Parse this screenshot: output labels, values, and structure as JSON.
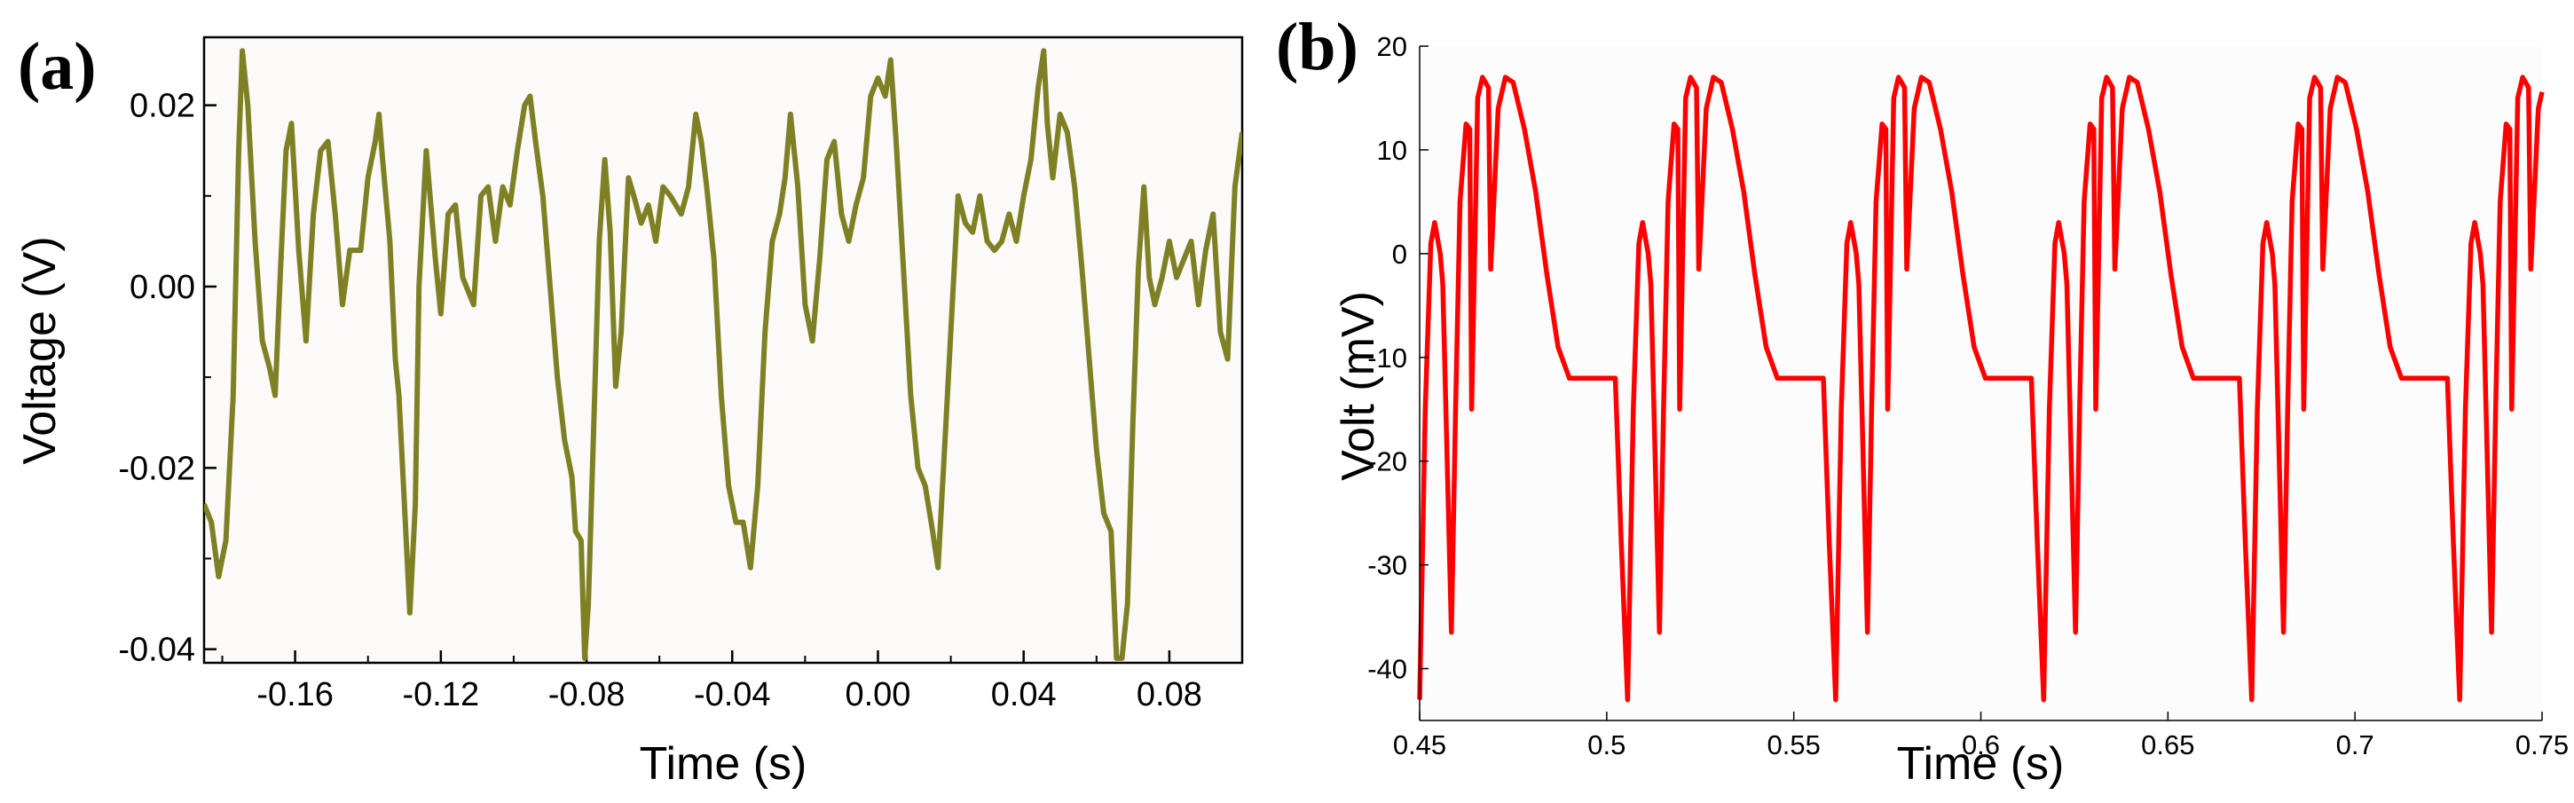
{
  "chart_data": [
    {
      "panel_label": "(a)",
      "type": "line",
      "xlabel": "Time (s)",
      "ylabel": "Voltage (V)",
      "xlim": [
        -0.185,
        0.1
      ],
      "ylim": [
        -0.0415,
        0.0275
      ],
      "x_ticks": [
        -0.16,
        -0.12,
        -0.08,
        -0.04,
        0.0,
        0.04,
        0.08
      ],
      "x_tick_labels": [
        "-0.16",
        "-0.12",
        "-0.08",
        "-0.04",
        "0.00",
        "0.04",
        "0.08"
      ],
      "y_ticks": [
        -0.04,
        -0.02,
        0.0,
        0.02
      ],
      "y_tick_labels": [
        "-0.04",
        "-0.02",
        "0.00",
        "0.02"
      ],
      "grid": false,
      "series": [
        {
          "name": "voltage",
          "color": "#7f7f24",
          "points": [
            [
              -0.185,
              -0.024
            ],
            [
              -0.183,
              -0.026
            ],
            [
              -0.181,
              -0.032
            ],
            [
              -0.179,
              -0.028
            ],
            [
              -0.177,
              -0.012
            ],
            [
              -0.1755,
              0.015
            ],
            [
              -0.1745,
              0.026
            ],
            [
              -0.173,
              0.02
            ],
            [
              -0.171,
              0.005
            ],
            [
              -0.169,
              -0.006
            ],
            [
              -0.167,
              -0.009
            ],
            [
              -0.1655,
              -0.012
            ],
            [
              -0.164,
              0.002
            ],
            [
              -0.1625,
              0.015
            ],
            [
              -0.161,
              0.018
            ],
            [
              -0.159,
              0.004
            ],
            [
              -0.157,
              -0.006
            ],
            [
              -0.155,
              0.008
            ],
            [
              -0.153,
              0.015
            ],
            [
              -0.151,
              0.016
            ],
            [
              -0.149,
              0.008
            ],
            [
              -0.147,
              -0.002
            ],
            [
              -0.145,
              0.004
            ],
            [
              -0.142,
              0.004
            ],
            [
              -0.14,
              0.012
            ],
            [
              -0.138,
              0.016
            ],
            [
              -0.137,
              0.019
            ],
            [
              -0.136,
              0.014
            ],
            [
              -0.134,
              0.005
            ],
            [
              -0.1325,
              -0.008
            ],
            [
              -0.1315,
              -0.012
            ],
            [
              -0.13,
              -0.024
            ],
            [
              -0.1285,
              -0.036
            ],
            [
              -0.127,
              -0.024
            ],
            [
              -0.126,
              0.0
            ],
            [
              -0.124,
              0.015
            ],
            [
              -0.1215,
              0.003
            ],
            [
              -0.12,
              -0.003
            ],
            [
              -0.118,
              0.008
            ],
            [
              -0.116,
              0.009
            ],
            [
              -0.114,
              0.001
            ],
            [
              -0.111,
              -0.002
            ],
            [
              -0.109,
              0.01
            ],
            [
              -0.107,
              0.011
            ],
            [
              -0.105,
              0.005
            ],
            [
              -0.103,
              0.011
            ],
            [
              -0.101,
              0.009
            ],
            [
              -0.099,
              0.015
            ],
            [
              -0.097,
              0.02
            ],
            [
              -0.0955,
              0.021
            ],
            [
              -0.094,
              0.016
            ],
            [
              -0.092,
              0.01
            ],
            [
              -0.09,
              0.0
            ],
            [
              -0.088,
              -0.01
            ],
            [
              -0.086,
              -0.017
            ],
            [
              -0.084,
              -0.021
            ],
            [
              -0.083,
              -0.027
            ],
            [
              -0.0815,
              -0.028
            ],
            [
              -0.0805,
              -0.041
            ],
            [
              -0.0795,
              -0.035
            ],
            [
              -0.078,
              -0.015
            ],
            [
              -0.0765,
              0.005
            ],
            [
              -0.075,
              0.014
            ],
            [
              -0.0735,
              0.006
            ],
            [
              -0.072,
              -0.011
            ],
            [
              -0.0705,
              -0.005
            ],
            [
              -0.0685,
              0.012
            ],
            [
              -0.067,
              0.01
            ],
            [
              -0.065,
              0.007
            ],
            [
              -0.063,
              0.009
            ],
            [
              -0.061,
              0.005
            ],
            [
              -0.059,
              0.011
            ],
            [
              -0.057,
              0.01
            ],
            [
              -0.054,
              0.008
            ],
            [
              -0.052,
              0.011
            ],
            [
              -0.05,
              0.019
            ],
            [
              -0.0485,
              0.016
            ],
            [
              -0.047,
              0.011
            ],
            [
              -0.045,
              0.003
            ],
            [
              -0.043,
              -0.012
            ],
            [
              -0.041,
              -0.022
            ],
            [
              -0.039,
              -0.026
            ],
            [
              -0.037,
              -0.026
            ],
            [
              -0.035,
              -0.031
            ],
            [
              -0.033,
              -0.022
            ],
            [
              -0.031,
              -0.005
            ],
            [
              -0.029,
              0.005
            ],
            [
              -0.027,
              0.008
            ],
            [
              -0.0255,
              0.012
            ],
            [
              -0.024,
              0.019
            ],
            [
              -0.022,
              0.011
            ],
            [
              -0.02,
              -0.002
            ],
            [
              -0.018,
              -0.006
            ],
            [
              -0.016,
              0.003
            ],
            [
              -0.014,
              0.014
            ],
            [
              -0.012,
              0.016
            ],
            [
              -0.01,
              0.008
            ],
            [
              -0.008,
              0.005
            ],
            [
              -0.006,
              0.009
            ],
            [
              -0.004,
              0.012
            ],
            [
              -0.002,
              0.021
            ],
            [
              0.0,
              0.023
            ],
            [
              0.002,
              0.021
            ],
            [
              0.0035,
              0.025
            ],
            [
              0.005,
              0.016
            ],
            [
              0.007,
              0.002
            ],
            [
              0.009,
              -0.012
            ],
            [
              0.011,
              -0.02
            ],
            [
              0.013,
              -0.022
            ],
            [
              0.015,
              -0.027
            ],
            [
              0.0165,
              -0.031
            ],
            [
              0.018,
              -0.02
            ],
            [
              0.02,
              -0.005
            ],
            [
              0.022,
              0.01
            ],
            [
              0.024,
              0.007
            ],
            [
              0.026,
              0.006
            ],
            [
              0.028,
              0.01
            ],
            [
              0.03,
              0.005
            ],
            [
              0.032,
              0.004
            ],
            [
              0.034,
              0.005
            ],
            [
              0.036,
              0.008
            ],
            [
              0.038,
              0.005
            ],
            [
              0.04,
              0.01
            ],
            [
              0.042,
              0.014
            ],
            [
              0.044,
              0.022
            ],
            [
              0.0455,
              0.026
            ],
            [
              0.0465,
              0.018
            ],
            [
              0.048,
              0.012
            ],
            [
              0.05,
              0.019
            ],
            [
              0.052,
              0.017
            ],
            [
              0.054,
              0.011
            ],
            [
              0.056,
              0.002
            ],
            [
              0.058,
              -0.008
            ],
            [
              0.06,
              -0.018
            ],
            [
              0.062,
              -0.025
            ],
            [
              0.064,
              -0.027
            ],
            [
              0.0655,
              -0.041
            ],
            [
              0.067,
              -0.041
            ],
            [
              0.0685,
              -0.035
            ],
            [
              0.07,
              -0.015
            ],
            [
              0.0715,
              0.002
            ],
            [
              0.073,
              0.011
            ],
            [
              0.0745,
              0.001
            ],
            [
              0.076,
              -0.002
            ],
            [
              0.078,
              0.001
            ],
            [
              0.08,
              0.005
            ],
            [
              0.082,
              0.001
            ],
            [
              0.084,
              0.003
            ],
            [
              0.086,
              0.005
            ],
            [
              0.088,
              -0.002
            ],
            [
              0.09,
              0.004
            ],
            [
              0.092,
              0.008
            ],
            [
              0.094,
              -0.005
            ],
            [
              0.096,
              -0.008
            ],
            [
              0.098,
              0.011
            ],
            [
              0.1,
              0.017
            ]
          ]
        }
      ]
    },
    {
      "panel_label": "(b)",
      "type": "line",
      "xlabel": "Time (s)",
      "ylabel": "Volt (mV)",
      "xlim": [
        0.45,
        0.75
      ],
      "ylim": [
        -45,
        20
      ],
      "x_ticks": [
        0.45,
        0.5,
        0.55,
        0.6,
        0.65,
        0.7,
        0.75
      ],
      "x_tick_labels": [
        "0.45",
        "0.5",
        "0.55",
        "0.6",
        "0.65",
        "0.7",
        "0.75"
      ],
      "y_ticks": [
        -40,
        -30,
        -20,
        -10,
        0,
        10,
        20
      ],
      "y_tick_labels": [
        "-40",
        "-30",
        "-20",
        "-10",
        "0",
        "10",
        "20"
      ],
      "grid": false,
      "series": [
        {
          "name": "volt",
          "color": "#ff0000",
          "period": 0.0556,
          "x_start": 0.45,
          "x_end": 0.75,
          "cycle_start": 0.4467,
          "cycle_offsets": [
            0.0,
            0.0016,
            0.0033,
            0.0048,
            0.0063,
            0.0073,
            0.0088,
            0.0095,
            0.0118,
            0.0129,
            0.0141,
            0.0157,
            0.0167,
            0.0172,
            0.0188,
            0.0201,
            0.0217,
            0.0223,
            0.0243,
            0.0262,
            0.0283,
            0.0313,
            0.0343,
            0.0373,
            0.0403,
            0.0433,
            0.0453,
            0.0556
          ],
          "cycle_values": [
            -12,
            -28,
            -43,
            -15,
            1,
            3,
            0,
            -3,
            -36.5,
            -15,
            5,
            12.5,
            12,
            -15,
            15,
            17,
            16,
            -1.5,
            14,
            17,
            16.5,
            12,
            6,
            -2,
            -9,
            -12,
            -12,
            -12
          ]
        }
      ]
    }
  ]
}
